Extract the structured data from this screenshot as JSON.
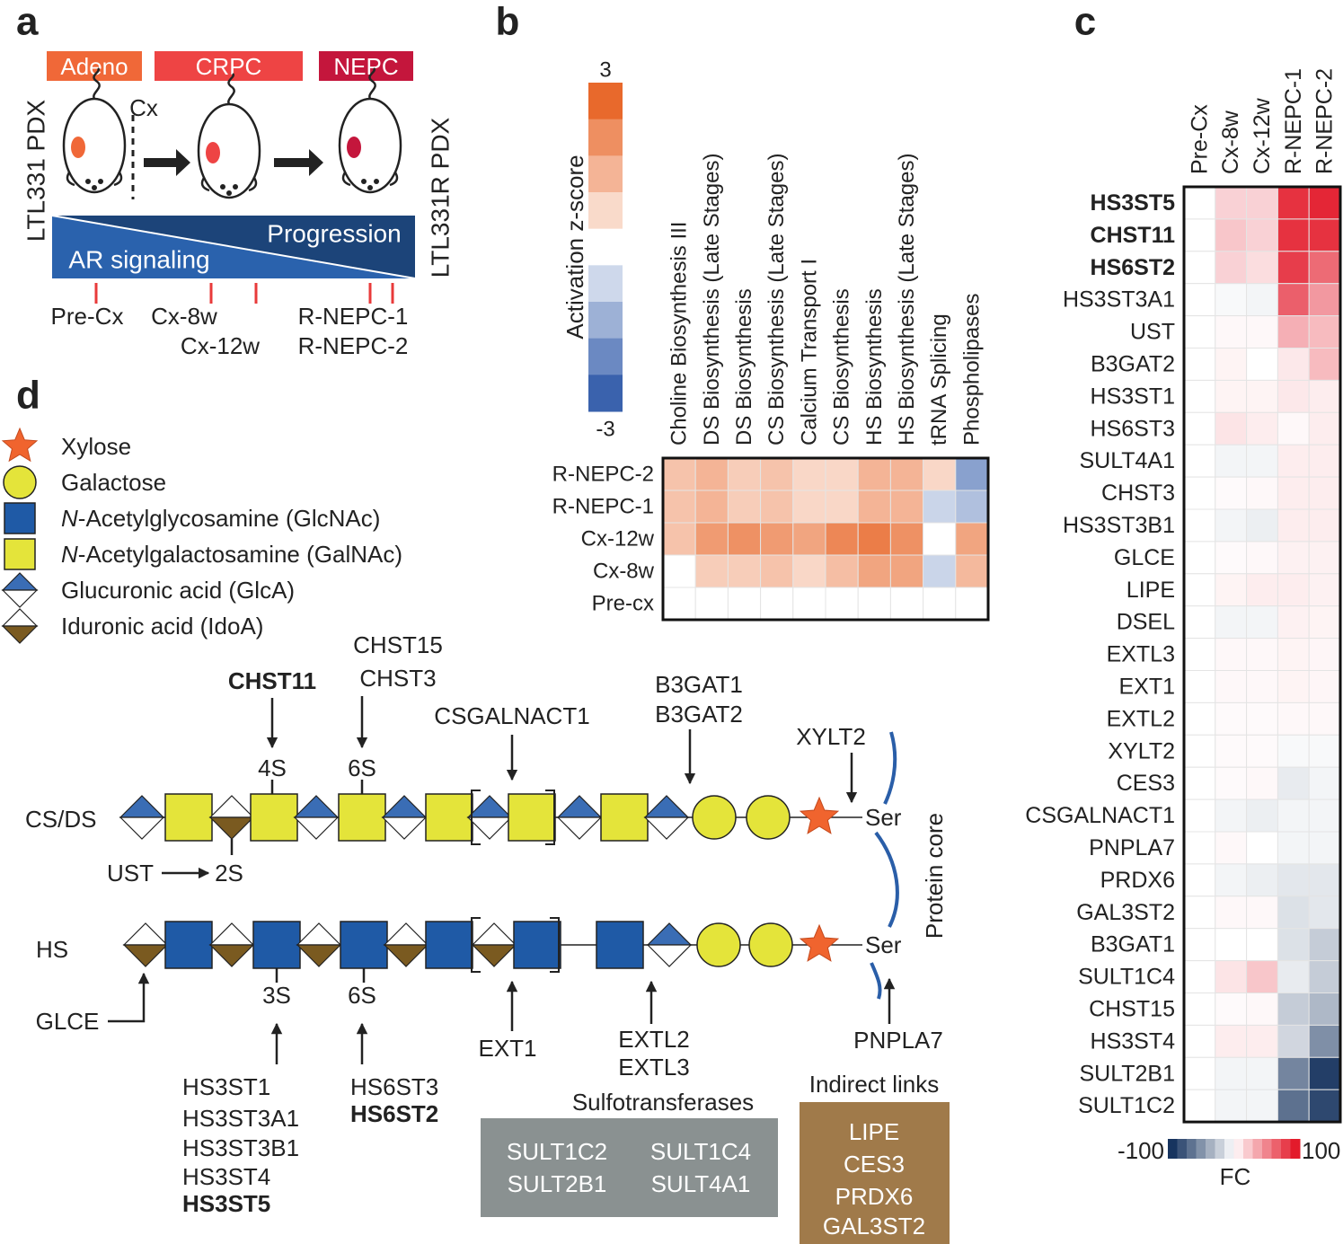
{
  "panel_a": {
    "label": "a",
    "stages": [
      "Adeno",
      "CRPC",
      "NEPC"
    ],
    "cx": "Cx",
    "left_label": "LTL331 PDX",
    "right_label": "LTL331R PDX",
    "progression": "Progression",
    "ar_signaling": "AR signaling",
    "timepoints": [
      "Pre-Cx",
      "Cx-8w",
      "Cx-12w",
      "R-NEPC-1",
      "R-NEPC-2"
    ]
  },
  "chart_data": [
    {
      "type": "heatmap",
      "panel": "b",
      "colorbar_label": "Activation z-score",
      "zlim": [
        -3,
        3
      ],
      "colorbar_ticks": [
        3,
        -3
      ],
      "colors": {
        "low": "#3a62ad",
        "high": "#e8692c"
      },
      "rows": [
        "R-NEPC-2",
        "R-NEPC-1",
        "Cx-12w",
        "Cx-8w",
        "Pre-cx"
      ],
      "columns": [
        "Choline Biosynthesis III",
        "DS Biosynthesis (Late Stages)",
        "DS Biosynthesis",
        "CS Biosynthesis (Late Stages)",
        "Calcium Transport I",
        "CS Biosynthesis",
        "HS Biosynthesis",
        "HS Biosynthesis (Late Stages)",
        "tRNA Splicing",
        "Phospholipases"
      ],
      "values": [
        [
          1.2,
          1.5,
          1.0,
          1.2,
          0.8,
          0.8,
          1.5,
          1.5,
          0.8,
          -1.8
        ],
        [
          1.2,
          1.5,
          1.0,
          1.2,
          0.8,
          0.8,
          1.5,
          1.5,
          -0.8,
          -1.2
        ],
        [
          1.2,
          2.0,
          2.2,
          2.0,
          1.8,
          2.4,
          2.6,
          2.2,
          0,
          1.8
        ],
        [
          0,
          1.0,
          1.0,
          1.2,
          0.8,
          1.3,
          1.8,
          1.8,
          -0.8,
          1.4
        ],
        [
          0,
          0,
          0,
          0,
          0,
          0,
          0,
          0,
          0,
          0
        ]
      ]
    },
    {
      "type": "heatmap",
      "panel": "c",
      "colorbar_label": "FC",
      "zlim": [
        -100,
        100
      ],
      "colorbar_ticks": [
        -100,
        100
      ],
      "colors": {
        "low": "#17345f",
        "high": "#e31b2b"
      },
      "columns": [
        "Pre-Cx",
        "Cx-8w",
        "Cx-12w",
        "R-NEPC-1",
        "R-NEPC-2"
      ],
      "rows": [
        {
          "label": "HS3ST5",
          "bold": true
        },
        {
          "label": "CHST11",
          "bold": true
        },
        {
          "label": "HS6ST2",
          "bold": true
        },
        {
          "label": "HS3ST3A1",
          "bold": false
        },
        {
          "label": "UST",
          "bold": false
        },
        {
          "label": "B3GAT2",
          "bold": false
        },
        {
          "label": "HS3ST1",
          "bold": false
        },
        {
          "label": "HS6ST3",
          "bold": false
        },
        {
          "label": "SULT4A1",
          "bold": false
        },
        {
          "label": "CHST3",
          "bold": false
        },
        {
          "label": "HS3ST3B1",
          "bold": false
        },
        {
          "label": "GLCE",
          "bold": false
        },
        {
          "label": "LIPE",
          "bold": false
        },
        {
          "label": "DSEL",
          "bold": false
        },
        {
          "label": "EXTL3",
          "bold": false
        },
        {
          "label": "EXT1",
          "bold": false
        },
        {
          "label": "EXTL2",
          "bold": false
        },
        {
          "label": "XYLT2",
          "bold": false
        },
        {
          "label": "CES3",
          "bold": false
        },
        {
          "label": "CSGALNACT1",
          "bold": false
        },
        {
          "label": "PNPLA7",
          "bold": false
        },
        {
          "label": "PRDX6",
          "bold": false
        },
        {
          "label": "GAL3ST2",
          "bold": false
        },
        {
          "label": "B3GAT1",
          "bold": false
        },
        {
          "label": "SULT1C4",
          "bold": false
        },
        {
          "label": "CHST15",
          "bold": false
        },
        {
          "label": "HS3ST4",
          "bold": false
        },
        {
          "label": "SULT2B1",
          "bold": false
        },
        {
          "label": "SULT1C2",
          "bold": false
        }
      ],
      "values": [
        [
          0,
          20,
          20,
          90,
          95
        ],
        [
          0,
          25,
          20,
          90,
          90
        ],
        [
          0,
          20,
          15,
          85,
          65
        ],
        [
          0,
          -3,
          -5,
          70,
          45
        ],
        [
          0,
          3,
          3,
          35,
          30
        ],
        [
          0,
          5,
          0,
          10,
          30
        ],
        [
          0,
          5,
          5,
          10,
          8
        ],
        [
          0,
          12,
          8,
          3,
          8
        ],
        [
          0,
          -5,
          -5,
          8,
          8
        ],
        [
          0,
          2,
          3,
          8,
          8
        ],
        [
          0,
          -5,
          -8,
          8,
          8
        ],
        [
          0,
          2,
          3,
          6,
          6
        ],
        [
          0,
          5,
          8,
          8,
          6
        ],
        [
          0,
          -5,
          -5,
          6,
          5
        ],
        [
          0,
          3,
          3,
          5,
          4
        ],
        [
          0,
          3,
          3,
          5,
          4
        ],
        [
          0,
          2,
          2,
          3,
          3
        ],
        [
          0,
          2,
          2,
          -3,
          -3
        ],
        [
          0,
          2,
          3,
          -10,
          -5
        ],
        [
          0,
          -5,
          -8,
          -5,
          -5
        ],
        [
          0,
          3,
          0,
          -5,
          -5
        ],
        [
          0,
          -5,
          -8,
          -12,
          -12
        ],
        [
          0,
          3,
          3,
          -15,
          -12
        ],
        [
          0,
          0,
          0,
          -15,
          -25
        ],
        [
          0,
          12,
          25,
          -10,
          -25
        ],
        [
          0,
          2,
          3,
          -25,
          -35
        ],
        [
          0,
          8,
          8,
          -20,
          -55
        ],
        [
          0,
          -5,
          -5,
          -60,
          -95
        ],
        [
          0,
          -5,
          -5,
          -70,
          -90
        ]
      ]
    }
  ],
  "panel_d": {
    "label": "d",
    "legend": [
      {
        "text": "Xylose"
      },
      {
        "text": "Galactose"
      },
      {
        "prefix": "N",
        "text": "-Acetylglycosamine (GlcNAc)"
      },
      {
        "prefix": "N",
        "text": "-Acetylgalactosamine (GalNAc)"
      },
      {
        "text": "Glucuronic acid (GlcA)"
      },
      {
        "text": "Iduronic acid (IdoA)"
      }
    ],
    "cs_ds_label": "CS/DS",
    "hs_label": "HS",
    "ser_cs": "Ser",
    "ser_hs": "Ser",
    "protein_core": "Protein core",
    "s4": "4S",
    "s6_cs": "6S",
    "s2": "2S",
    "s3": "3S",
    "s6_hs": "6S",
    "chst11": "CHST11",
    "chst15_chst3": [
      "CHST15",
      "CHST3"
    ],
    "csgalnact1": "CSGALNACT1",
    "b3gat": [
      "B3GAT1",
      "B3GAT2"
    ],
    "xylt2": "XYLT2",
    "ust": "UST",
    "glce": "GLCE",
    "hs3st": [
      "HS3ST1",
      "HS3ST3A1",
      "HS3ST3B1",
      "HS3ST4",
      "HS3ST5"
    ],
    "hs6st": [
      "HS6ST3",
      "HS6ST2"
    ],
    "ext1": "EXT1",
    "extl": [
      "EXTL2",
      "EXTL3"
    ],
    "pnpla7": "PNPLA7",
    "sulfotransferases": {
      "title": "Sulfotransferases",
      "genes": [
        "SULT1C2",
        "SULT1C4",
        "SULT2B1",
        "SULT4A1"
      ]
    },
    "indirect_links": {
      "title": "Indirect links",
      "genes": [
        "LIPE",
        "CES3",
        "PRDX6",
        "GAL3ST2"
      ]
    }
  }
}
